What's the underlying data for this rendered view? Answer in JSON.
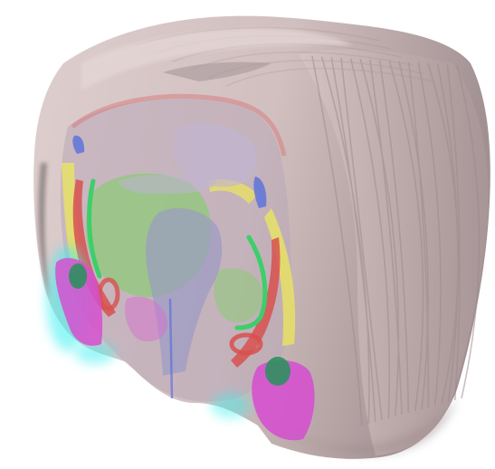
{
  "scene": {
    "kind": "3d-brain-rendering",
    "background_color": "#ffffff",
    "colors": {
      "outer_shell": "#cfbcbc",
      "outer_shell_light": "#dccbcb",
      "outer_shell_shadow": "#9c8a8c",
      "inner_red": "#d8504f",
      "ventricle_yellow": "#e8e065",
      "green_fill": "#8fc87a",
      "bright_green": "#3ccf6a",
      "purple_core": "#9a98c6",
      "lavender": "#bfb4d4",
      "blue": "#5f73d8",
      "magenta": "#d54fcf",
      "cyan_glow": "#3cf0f0",
      "dark_green": "#2f8f5f"
    }
  }
}
